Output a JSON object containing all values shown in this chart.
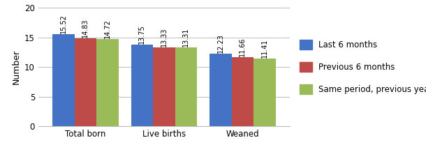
{
  "categories": [
    "Total born",
    "Live births",
    "Weaned"
  ],
  "series": [
    {
      "label": "Last 6 months",
      "color": "#4472C4",
      "values": [
        15.52,
        13.75,
        12.23
      ]
    },
    {
      "label": "Previous 6 months",
      "color": "#BE4B48",
      "values": [
        14.83,
        13.33,
        11.66
      ]
    },
    {
      "label": "Same period, previous year",
      "color": "#9BBB59",
      "values": [
        14.72,
        13.31,
        11.41
      ]
    }
  ],
  "ylabel": "Number",
  "ylim": [
    0,
    20
  ],
  "yticks": [
    0,
    5,
    10,
    15,
    20
  ],
  "bar_width": 0.28,
  "value_fontsize": 7.0,
  "axis_label_fontsize": 9,
  "tick_fontsize": 8.5,
  "legend_fontsize": 8.5,
  "background_color": "#FFFFFF",
  "grid_color": "#BBBBBB",
  "figwidth": 6.1,
  "figheight": 2.21,
  "dpi": 100
}
